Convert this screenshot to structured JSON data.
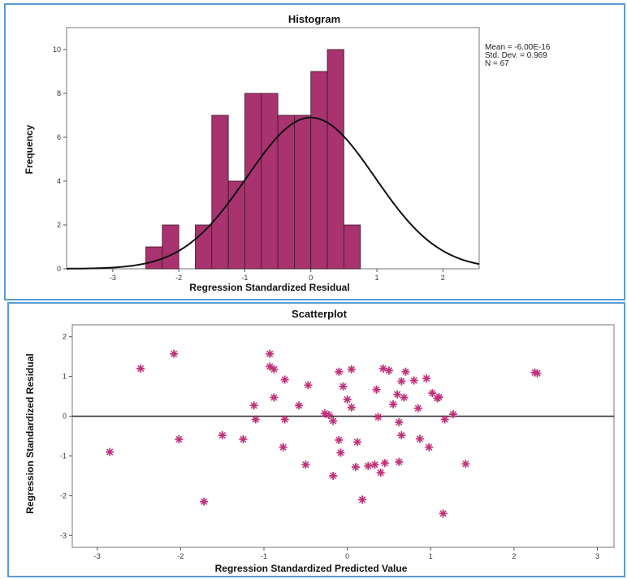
{
  "colors": {
    "bar_fill": "#a8336f",
    "bar_stroke": "#3a1628",
    "marker": "#c0317a",
    "curve": "#111111",
    "panel_border": "#5b9bd5"
  },
  "chart_data": [
    {
      "type": "bar",
      "title": "Histogram",
      "xlabel": "Regression Standardized Residual",
      "ylabel": "Frequency",
      "xlim": [
        -3.7,
        2.55
      ],
      "ylim": [
        0,
        11
      ],
      "xticks": [
        -3,
        -2,
        -1,
        0,
        1,
        2
      ],
      "xtick_labels": [
        "-3",
        "-2",
        "-1",
        "0",
        "1",
        "2"
      ],
      "yticks": [
        0,
        2,
        4,
        6,
        8,
        10
      ],
      "bin_width": 0.25,
      "bins": [
        {
          "start": -2.5,
          "count": 1
        },
        {
          "start": -2.25,
          "count": 2
        },
        {
          "start": -2.0,
          "count": 0
        },
        {
          "start": -1.75,
          "count": 2
        },
        {
          "start": -1.5,
          "count": 7
        },
        {
          "start": -1.25,
          "count": 4
        },
        {
          "start": -1.0,
          "count": 8
        },
        {
          "start": -0.75,
          "count": 8
        },
        {
          "start": -0.5,
          "count": 7
        },
        {
          "start": -0.25,
          "count": 7
        },
        {
          "start": 0.0,
          "count": 9
        },
        {
          "start": 0.25,
          "count": 10
        },
        {
          "start": 0.5,
          "count": 2
        }
      ],
      "normal_curve": {
        "mean": -6e-16,
        "sd": 0.969,
        "n": 67
      },
      "stats_text": [
        "Mean = -6.00E-16",
        "Std. Dev. = 0.969",
        "N = 67"
      ],
      "grid": false
    },
    {
      "type": "scatter",
      "title": "Scatterplot",
      "xlabel": "Regression Standardized Predicted Value",
      "ylabel": "Regression Standardized Residual",
      "xlim": [
        -3.3,
        3.2
      ],
      "ylim": [
        -3.3,
        2.3
      ],
      "xticks": [
        -3,
        -2,
        -1,
        0,
        1,
        2,
        3
      ],
      "xtick_labels": [
        "-3",
        "-2",
        "-1",
        "0",
        "1",
        "2",
        "3"
      ],
      "yticks": [
        -3,
        -2,
        -1,
        0,
        1,
        2
      ],
      "ytick_labels": [
        "-3",
        "-2",
        "-1",
        "0",
        "1",
        "2"
      ],
      "reference_line_y": 0,
      "grid": false,
      "points": [
        [
          -2.85,
          -0.9
        ],
        [
          -2.48,
          1.2
        ],
        [
          -2.08,
          1.57
        ],
        [
          -2.02,
          -0.58
        ],
        [
          -1.72,
          -2.15
        ],
        [
          -1.5,
          -0.48
        ],
        [
          -1.25,
          -0.58
        ],
        [
          -1.12,
          0.27
        ],
        [
          -1.1,
          -0.08
        ],
        [
          -0.93,
          1.57
        ],
        [
          -0.93,
          1.25
        ],
        [
          -0.88,
          1.18
        ],
        [
          -0.88,
          0.47
        ],
        [
          -0.75,
          0.92
        ],
        [
          -0.75,
          -0.08
        ],
        [
          -0.77,
          -0.78
        ],
        [
          -0.58,
          0.27
        ],
        [
          -0.5,
          -1.22
        ],
        [
          -0.47,
          0.78
        ],
        [
          -0.27,
          0.07
        ],
        [
          -0.22,
          0.03
        ],
        [
          -0.17,
          -0.12
        ],
        [
          -0.17,
          -1.5
        ],
        [
          -0.1,
          1.12
        ],
        [
          -0.1,
          -0.6
        ],
        [
          -0.08,
          -0.92
        ],
        [
          -0.05,
          0.75
        ],
        [
          0.0,
          0.42
        ],
        [
          0.05,
          0.22
        ],
        [
          0.05,
          1.18
        ],
        [
          0.1,
          -1.28
        ],
        [
          0.12,
          -0.65
        ],
        [
          0.18,
          -2.1
        ],
        [
          0.25,
          -1.25
        ],
        [
          0.33,
          -1.22
        ],
        [
          0.35,
          0.67
        ],
        [
          0.37,
          -0.02
        ],
        [
          0.4,
          -1.42
        ],
        [
          0.43,
          1.2
        ],
        [
          0.45,
          -1.18
        ],
        [
          0.5,
          1.15
        ],
        [
          0.55,
          0.3
        ],
        [
          0.6,
          0.55
        ],
        [
          0.62,
          -1.15
        ],
        [
          0.62,
          -0.15
        ],
        [
          0.65,
          0.88
        ],
        [
          0.65,
          -0.48
        ],
        [
          0.68,
          0.47
        ],
        [
          0.7,
          1.12
        ],
        [
          0.8,
          0.9
        ],
        [
          0.85,
          0.2
        ],
        [
          0.87,
          -0.57
        ],
        [
          0.95,
          0.95
        ],
        [
          0.98,
          -0.78
        ],
        [
          1.02,
          0.58
        ],
        [
          1.08,
          0.45
        ],
        [
          1.1,
          0.48
        ],
        [
          1.15,
          -2.45
        ],
        [
          1.17,
          -0.08
        ],
        [
          1.27,
          0.05
        ],
        [
          1.42,
          -1.2
        ],
        [
          2.25,
          1.1
        ],
        [
          2.28,
          1.08
        ]
      ]
    }
  ]
}
